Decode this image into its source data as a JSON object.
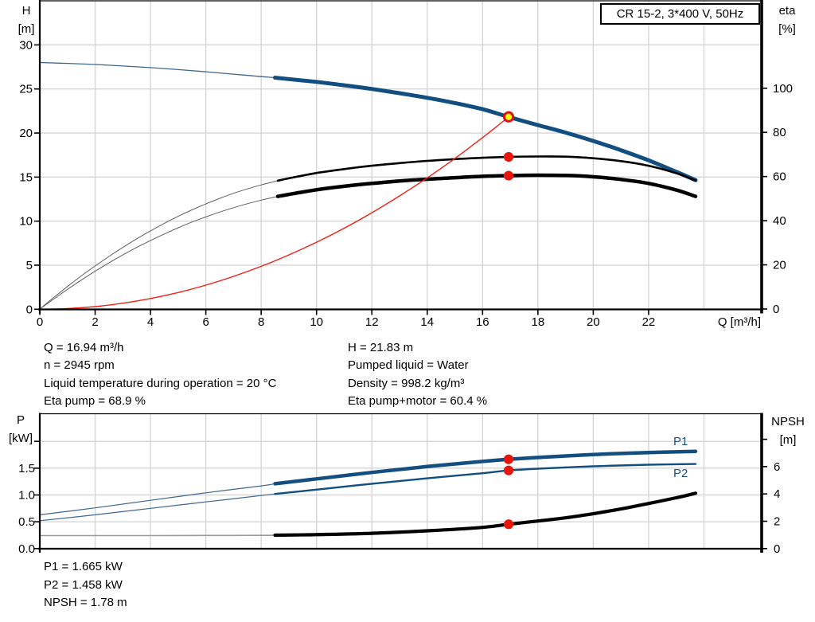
{
  "title_box": {
    "label": "CR 15-2, 3*400 V, 50Hz"
  },
  "corner_labels": {
    "h": "H",
    "h_unit": "[m]",
    "eta": "eta",
    "eta_unit": "[%]",
    "p": "P",
    "p_unit": "[kW]",
    "npsh": "NPSH",
    "npsh_unit": "[m]"
  },
  "labels": {
    "p1": "P1",
    "p2": "P2"
  },
  "info_block": {
    "left": [
      "Q = 16.94 m³/h",
      "n = 2945 rpm",
      "Liquid temperature during operation = 20 °C",
      "Eta pump = 68.9 %"
    ],
    "right": [
      "H = 21.83 m",
      "Pumped liquid = Water",
      "Density = 998.2 kg/m³",
      "Eta pump+motor = 60.4 %"
    ]
  },
  "result_block": {
    "lines": [
      "P1 = 1.665 kW",
      "P2 = 1.458 kW",
      "NPSH = 1.78 m"
    ]
  },
  "colors": {
    "blue": "#124f80",
    "blue_thin": "#3d6690",
    "black": "#000000",
    "black_thin": "#5e5e5e",
    "red": "#ef2014",
    "red_thin": "#f4564d",
    "gray_thin": "#9b9b9b",
    "grid": "#d6d6d6",
    "axis": "#000000",
    "marker": "#e8150b",
    "duty_fill": "#ffff00",
    "duty_ring": "#e00e0e",
    "label_blue": "#1b4f80"
  },
  "chart_data": [
    {
      "id": "head-efficiency-chart",
      "type": "line",
      "title": "CR 15-2, 3*400 V, 50Hz",
      "x": {
        "label": "Q [m³/h]",
        "min": 0,
        "max": 26.1,
        "ticks": [
          {
            "v": 0,
            "label": "0"
          },
          {
            "v": 2,
            "label": "2"
          },
          {
            "v": 4,
            "label": "4"
          },
          {
            "v": 6,
            "label": "6"
          },
          {
            "v": 8,
            "label": "8"
          },
          {
            "v": 10,
            "label": "10"
          },
          {
            "v": 12,
            "label": "12"
          },
          {
            "v": 14,
            "label": "14"
          },
          {
            "v": 16,
            "label": "16"
          },
          {
            "v": 18,
            "label": "18"
          },
          {
            "v": 20,
            "label": "20"
          },
          {
            "v": 22,
            "label": "22"
          }
        ],
        "grid": [
          2,
          4,
          6,
          8,
          10,
          12,
          14,
          16,
          18,
          20,
          22,
          24
        ]
      },
      "y_left": {
        "label": "H [m]",
        "min": 0,
        "max": 35,
        "ticks": [
          {
            "v": 0,
            "label": "0"
          },
          {
            "v": 5,
            "label": "5"
          },
          {
            "v": 10,
            "label": "10"
          },
          {
            "v": 15,
            "label": "15"
          },
          {
            "v": 20,
            "label": "20"
          },
          {
            "v": 25,
            "label": "25"
          },
          {
            "v": 30,
            "label": "30"
          }
        ],
        "grid": [
          5,
          10,
          15,
          20,
          25,
          30
        ]
      },
      "y_right": {
        "label": "eta [%]",
        "min": 0,
        "max": 140,
        "ticks": [
          {
            "v": 0,
            "label": "0"
          },
          {
            "v": 20,
            "label": "20"
          },
          {
            "v": 40,
            "label": "40"
          },
          {
            "v": 60,
            "label": "60"
          },
          {
            "v": 80,
            "label": "80"
          },
          {
            "v": 100,
            "label": "100"
          }
        ]
      },
      "series": [
        {
          "name": "head-curve",
          "axis": "left",
          "color": "blue",
          "thin_color": "blue_thin",
          "split_q": 8.5,
          "thin_w": 1.3,
          "thick_w": 5,
          "points": [
            [
              0,
              28.0
            ],
            [
              1,
              27.9
            ],
            [
              2,
              27.78
            ],
            [
              3,
              27.6
            ],
            [
              4,
              27.42
            ],
            [
              5,
              27.2
            ],
            [
              6,
              26.95
            ],
            [
              7,
              26.68
            ],
            [
              8,
              26.4
            ],
            [
              8.5,
              26.28
            ],
            [
              9,
              26.12
            ],
            [
              10,
              25.8
            ],
            [
              11,
              25.42
            ],
            [
              12,
              25.0
            ],
            [
              13,
              24.52
            ],
            [
              14,
              24.0
            ],
            [
              15,
              23.4
            ],
            [
              16,
              22.7
            ],
            [
              16.94,
              21.83
            ],
            [
              18,
              20.9
            ],
            [
              19,
              20.05
            ],
            [
              20,
              19.1
            ],
            [
              21,
              18.05
            ],
            [
              22,
              16.9
            ],
            [
              23,
              15.6
            ],
            [
              23.7,
              14.65
            ]
          ]
        },
        {
          "name": "eta-pump-curve",
          "axis": "right",
          "color": "black",
          "thin_color": "black_thin",
          "split_q": 8.6,
          "thin_w": 1,
          "thick_w": 2.6,
          "points": [
            [
              0,
              0
            ],
            [
              0.5,
              5.2
            ],
            [
              1,
              10.2
            ],
            [
              1.5,
              15
            ],
            [
              2,
              19.5
            ],
            [
              2.5,
              23.8
            ],
            [
              3,
              27.9
            ],
            [
              3.5,
              31.8
            ],
            [
              4,
              35.4
            ],
            [
              4.5,
              38.8
            ],
            [
              5,
              42
            ],
            [
              5.5,
              44.9
            ],
            [
              6,
              47.6
            ],
            [
              6.5,
              50.1
            ],
            [
              7,
              52.4
            ],
            [
              7.5,
              54.4
            ],
            [
              8,
              56.2
            ],
            [
              8.6,
              58.1
            ],
            [
              9,
              59.2
            ],
            [
              10,
              61.6
            ],
            [
              11,
              63.4
            ],
            [
              12,
              64.9
            ],
            [
              13,
              66.1
            ],
            [
              14,
              67.1
            ],
            [
              15,
              67.9
            ],
            [
              16,
              68.5
            ],
            [
              16.94,
              68.9
            ],
            [
              18,
              69.1
            ],
            [
              19,
              69.0
            ],
            [
              20,
              68.3
            ],
            [
              21,
              67.0
            ],
            [
              22,
              64.9
            ],
            [
              23,
              61.5
            ],
            [
              23.7,
              58.2
            ]
          ]
        },
        {
          "name": "eta-pump-motor-curve",
          "axis": "right",
          "color": "black",
          "thin_color": "black_thin",
          "split_q": 8.6,
          "thin_w": 1,
          "thick_w": 4.5,
          "points": [
            [
              0,
              0
            ],
            [
              0.5,
              4.5
            ],
            [
              1,
              8.9
            ],
            [
              1.5,
              13.1
            ],
            [
              2,
              17.1
            ],
            [
              2.5,
              20.9
            ],
            [
              3,
              24.5
            ],
            [
              3.5,
              27.9
            ],
            [
              4,
              31
            ],
            [
              4.5,
              34
            ],
            [
              5,
              36.8
            ],
            [
              5.5,
              39.4
            ],
            [
              6,
              41.7
            ],
            [
              6.5,
              43.9
            ],
            [
              7,
              45.9
            ],
            [
              7.5,
              47.7
            ],
            [
              8,
              49.3
            ],
            [
              8.6,
              51
            ],
            [
              9,
              51.9
            ],
            [
              10,
              54
            ],
            [
              11,
              55.6
            ],
            [
              12,
              56.9
            ],
            [
              13,
              58
            ],
            [
              14,
              58.8
            ],
            [
              15,
              59.5
            ],
            [
              16,
              60.1
            ],
            [
              16.94,
              60.4
            ],
            [
              18,
              60.6
            ],
            [
              19,
              60.5
            ],
            [
              20,
              59.9
            ],
            [
              21,
              58.7
            ],
            [
              22,
              56.9
            ],
            [
              23,
              53.9
            ],
            [
              23.7,
              51
            ]
          ]
        },
        {
          "name": "system-curve",
          "axis": "left",
          "color": "red",
          "thin_color": "red_thin",
          "split_q": null,
          "thin_w": 1.4,
          "thick_w": 1.4,
          "points": [
            [
              0,
              0
            ],
            [
              1,
              0.08
            ],
            [
              2,
              0.3
            ],
            [
              3,
              0.69
            ],
            [
              4,
              1.22
            ],
            [
              5,
              1.9
            ],
            [
              6,
              2.74
            ],
            [
              7,
              3.73
            ],
            [
              8,
              4.87
            ],
            [
              9,
              6.16
            ],
            [
              10,
              7.61
            ],
            [
              11,
              9.2
            ],
            [
              12,
              10.95
            ],
            [
              13,
              12.86
            ],
            [
              14,
              14.91
            ],
            [
              15,
              17.12
            ],
            [
              16,
              19.48
            ],
            [
              16.5,
              20.72
            ],
            [
              16.94,
              21.83
            ]
          ]
        }
      ],
      "markers": [
        {
          "name": "duty-point",
          "q": 16.94,
          "v": 21.83,
          "axis": "left",
          "style": "duty"
        },
        {
          "name": "eta-pump-point",
          "q": 16.94,
          "v": 68.9,
          "axis": "right",
          "style": "dot"
        },
        {
          "name": "eta-pump-motor-point",
          "q": 16.94,
          "v": 60.4,
          "axis": "right",
          "style": "dot"
        }
      ]
    },
    {
      "id": "power-npsh-chart",
      "type": "line",
      "x": {
        "label": "",
        "min": 0,
        "max": 26.1,
        "ticks": [],
        "grid": [
          2,
          4,
          6,
          8,
          10,
          12,
          14,
          16,
          18,
          20,
          22,
          24
        ]
      },
      "y_left": {
        "label": "P [kW]",
        "min": 0,
        "max": 2.5,
        "ticks": [
          {
            "v": 0,
            "label": "0.0"
          },
          {
            "v": 0.5,
            "label": "0.5"
          },
          {
            "v": 1,
            "label": "1.0"
          },
          {
            "v": 1.5,
            "label": "1.5"
          },
          {
            "v": 2,
            "label": ""
          }
        ],
        "grid": [
          0.5,
          1,
          1.5,
          2
        ]
      },
      "y_right": {
        "label": "NPSH [m]",
        "min": 0,
        "max": 10,
        "ticks": [
          {
            "v": 0,
            "label": "0"
          },
          {
            "v": 2,
            "label": "2"
          },
          {
            "v": 4,
            "label": "4"
          },
          {
            "v": 6,
            "label": "6"
          },
          {
            "v": 8,
            "label": ""
          }
        ]
      },
      "series": [
        {
          "name": "p1-curve",
          "axis": "left",
          "color": "blue",
          "thin_color": "blue_thin",
          "split_q": 8.5,
          "thin_w": 1.2,
          "thick_w": 4.5,
          "points": [
            [
              0,
              0.63
            ],
            [
              2,
              0.76
            ],
            [
              4,
              0.9
            ],
            [
              6,
              1.04
            ],
            [
              8,
              1.17
            ],
            [
              8.5,
              1.21
            ],
            [
              10,
              1.3
            ],
            [
              12,
              1.42
            ],
            [
              14,
              1.53
            ],
            [
              16,
              1.625
            ],
            [
              16.94,
              1.665
            ],
            [
              18,
              1.7
            ],
            [
              20,
              1.755
            ],
            [
              22,
              1.79
            ],
            [
              23.7,
              1.815
            ]
          ]
        },
        {
          "name": "p2-curve",
          "axis": "left",
          "color": "blue",
          "thin_color": "blue_thin",
          "split_q": 8.5,
          "thin_w": 1.2,
          "thick_w": 2.4,
          "points": [
            [
              0,
              0.52
            ],
            [
              2,
              0.63
            ],
            [
              4,
              0.75
            ],
            [
              6,
              0.87
            ],
            [
              8,
              0.99
            ],
            [
              8.5,
              1.02
            ],
            [
              10,
              1.1
            ],
            [
              12,
              1.21
            ],
            [
              14,
              1.31
            ],
            [
              16,
              1.405
            ],
            [
              16.94,
              1.458
            ],
            [
              18,
              1.49
            ],
            [
              20,
              1.535
            ],
            [
              22,
              1.565
            ],
            [
              23.7,
              1.578
            ]
          ]
        },
        {
          "name": "npsh-curve",
          "axis": "right",
          "color": "black",
          "thin_color": "gray_thin",
          "split_q": 8.5,
          "thin_w": 1.6,
          "thick_w": 4.2,
          "points": [
            [
              0,
              0.95
            ],
            [
              2,
              0.95
            ],
            [
              4,
              0.95
            ],
            [
              6,
              0.96
            ],
            [
              8,
              0.97
            ],
            [
              8.5,
              0.98
            ],
            [
              10,
              1.02
            ],
            [
              12,
              1.12
            ],
            [
              14,
              1.3
            ],
            [
              16,
              1.55
            ],
            [
              16.94,
              1.78
            ],
            [
              18,
              2.02
            ],
            [
              19,
              2.25
            ],
            [
              20,
              2.55
            ],
            [
              21,
              2.9
            ],
            [
              22,
              3.3
            ],
            [
              23,
              3.72
            ],
            [
              23.7,
              4.05
            ]
          ]
        }
      ],
      "markers": [
        {
          "name": "p1-point",
          "q": 16.94,
          "v": 1.665,
          "axis": "left",
          "style": "dot"
        },
        {
          "name": "p2-point",
          "q": 16.94,
          "v": 1.458,
          "axis": "left",
          "style": "dot"
        },
        {
          "name": "npsh-point",
          "q": 16.94,
          "v": 1.78,
          "axis": "right",
          "style": "dot"
        }
      ]
    }
  ]
}
